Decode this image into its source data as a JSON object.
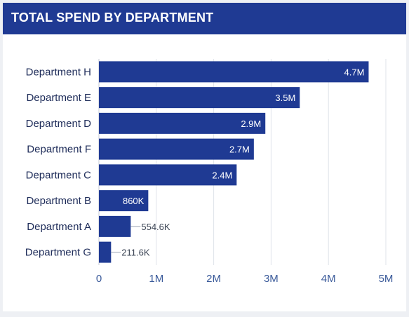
{
  "header": {
    "title": "TOTAL SPEND BY DEPARTMENT"
  },
  "colors": {
    "header_bg": "#1f3a93",
    "bar": "#1f3a93",
    "grid": "#dfe3ea",
    "axis_text": "#3a5a9a"
  },
  "chart_data": {
    "type": "bar",
    "orientation": "horizontal",
    "title": "TOTAL SPEND BY DEPARTMENT",
    "categories": [
      "Department H",
      "Department E",
      "Department D",
      "Department F",
      "Department C",
      "Department B",
      "Department A",
      "Department G"
    ],
    "values": [
      4700000,
      3500000,
      2900000,
      2700000,
      2400000,
      860000,
      554600,
      211600
    ],
    "data_labels": [
      "4.7M",
      "3.5M",
      "2.9M",
      "2.7M",
      "2.4M",
      "860K",
      "554.6K",
      "211.6K"
    ],
    "xlim": [
      0,
      5000000
    ],
    "xticks": [
      0,
      1000000,
      2000000,
      3000000,
      4000000,
      5000000
    ],
    "xtick_labels": [
      "0",
      "1M",
      "2M",
      "3M",
      "4M",
      "5M"
    ],
    "grid": true,
    "legend": "none"
  }
}
